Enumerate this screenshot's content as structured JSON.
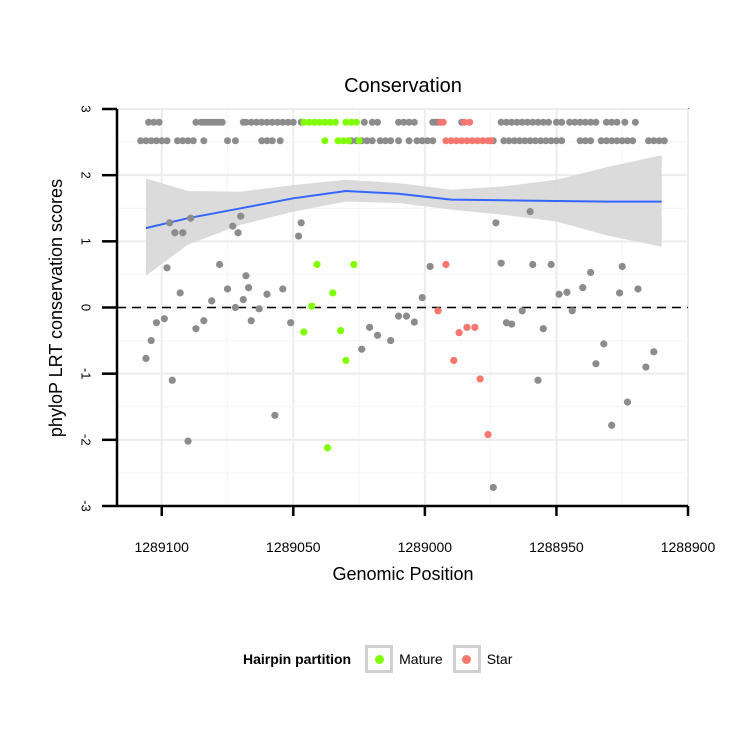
{
  "chart_data": {
    "type": "scatter",
    "title": "Conservation",
    "xlabel": "Genomic Position",
    "ylabel": "phyloP LRT conservation scores",
    "x_reversed": true,
    "xlim": [
      1289117,
      1288900
    ],
    "ylim": [
      -3,
      3
    ],
    "x_ticks": [
      1289100,
      1289050,
      1289000,
      1288950,
      1288900
    ],
    "x_tick_labels": [
      "1289100",
      "1289050",
      "1289000",
      "1288950",
      "1288900"
    ],
    "y_ticks": [
      -3,
      -2,
      -1,
      0,
      1,
      2,
      3
    ],
    "y_tick_labels": [
      "-3",
      "-2",
      "-1",
      "0",
      "1",
      "2",
      "3"
    ],
    "reference_line_y": 0,
    "legend": {
      "title": "Hairpin partition",
      "entries": [
        {
          "name": "Mature",
          "color": "#7FFF00"
        },
        {
          "name": "Star",
          "color": "#F8766D"
        }
      ]
    },
    "colors": {
      "other": "#8c8c8c",
      "Mature": "#7FFF00",
      "Star": "#F8766D",
      "trend": "#3366FF",
      "band": "#d9d9d9"
    },
    "trend": {
      "x": [
        1289106,
        1289090,
        1289070,
        1289050,
        1289030,
        1289010,
        1288990,
        1288970,
        1288950,
        1288930,
        1288910
      ],
      "y": [
        1.2,
        1.35,
        1.5,
        1.65,
        1.76,
        1.72,
        1.63,
        1.62,
        1.61,
        1.6,
        1.6
      ],
      "lower": [
        0.48,
        0.95,
        1.25,
        1.45,
        1.6,
        1.58,
        1.48,
        1.4,
        1.3,
        1.08,
        0.92
      ],
      "upper": [
        1.95,
        1.76,
        1.75,
        1.85,
        1.93,
        1.88,
        1.78,
        1.83,
        1.93,
        2.13,
        2.3
      ]
    },
    "points": [
      {
        "x": 1289106,
        "y": -0.77,
        "group": "other"
      },
      {
        "x": 1289104,
        "y": -0.5,
        "group": "other"
      },
      {
        "x": 1289102,
        "y": -0.23,
        "group": "other"
      },
      {
        "x": 1289099,
        "y": -0.17,
        "group": "other"
      },
      {
        "x": 1289098,
        "y": 0.6,
        "group": "other"
      },
      {
        "x": 1289097,
        "y": 1.28,
        "group": "other"
      },
      {
        "x": 1289096,
        "y": -1.1,
        "group": "other"
      },
      {
        "x": 1289095,
        "y": 1.13,
        "group": "other"
      },
      {
        "x": 1289093,
        "y": 0.22,
        "group": "other"
      },
      {
        "x": 1289092,
        "y": 1.13,
        "group": "other"
      },
      {
        "x": 1289090,
        "y": -2.02,
        "group": "other"
      },
      {
        "x": 1289089,
        "y": 1.35,
        "group": "other"
      },
      {
        "x": 1289087,
        "y": -0.32,
        "group": "other"
      },
      {
        "x": 1289084,
        "y": -0.2,
        "group": "other"
      },
      {
        "x": 1289081,
        "y": 0.1,
        "group": "other"
      },
      {
        "x": 1289078,
        "y": 0.65,
        "group": "other"
      },
      {
        "x": 1289075,
        "y": 0.28,
        "group": "other"
      },
      {
        "x": 1289073,
        "y": 1.23,
        "group": "other"
      },
      {
        "x": 1289072,
        "y": 0.0,
        "group": "other"
      },
      {
        "x": 1289071,
        "y": 1.13,
        "group": "other"
      },
      {
        "x": 1289070,
        "y": 1.38,
        "group": "other"
      },
      {
        "x": 1289069,
        "y": 0.12,
        "group": "other"
      },
      {
        "x": 1289068,
        "y": 0.48,
        "group": "other"
      },
      {
        "x": 1289067,
        "y": 0.3,
        "group": "other"
      },
      {
        "x": 1289066,
        "y": -0.2,
        "group": "other"
      },
      {
        "x": 1289063,
        "y": -0.02,
        "group": "other"
      },
      {
        "x": 1289060,
        "y": 0.2,
        "group": "other"
      },
      {
        "x": 1289057,
        "y": -1.63,
        "group": "other"
      },
      {
        "x": 1289054,
        "y": 0.28,
        "group": "other"
      },
      {
        "x": 1289051,
        "y": -0.23,
        "group": "other"
      },
      {
        "x": 1289048,
        "y": 1.08,
        "group": "other"
      },
      {
        "x": 1289047,
        "y": 1.28,
        "group": "other"
      },
      {
        "x": 1289046,
        "y": -0.37,
        "group": "Mature"
      },
      {
        "x": 1289043,
        "y": 0.02,
        "group": "Mature"
      },
      {
        "x": 1289041,
        "y": 0.65,
        "group": "Mature"
      },
      {
        "x": 1289037,
        "y": -2.12,
        "group": "Mature"
      },
      {
        "x": 1289035,
        "y": 0.22,
        "group": "Mature"
      },
      {
        "x": 1289032,
        "y": -0.35,
        "group": "Mature"
      },
      {
        "x": 1289030,
        "y": -0.8,
        "group": "Mature"
      },
      {
        "x": 1289027,
        "y": 0.65,
        "group": "Mature"
      },
      {
        "x": 1289024,
        "y": -0.63,
        "group": "other"
      },
      {
        "x": 1289021,
        "y": -0.3,
        "group": "other"
      },
      {
        "x": 1289018,
        "y": -0.42,
        "group": "other"
      },
      {
        "x": 1289013,
        "y": -0.5,
        "group": "other"
      },
      {
        "x": 1289010,
        "y": -0.13,
        "group": "other"
      },
      {
        "x": 1289007,
        "y": -0.13,
        "group": "other"
      },
      {
        "x": 1289004,
        "y": -0.22,
        "group": "other"
      },
      {
        "x": 1289001,
        "y": 0.15,
        "group": "other"
      },
      {
        "x": 1288998,
        "y": 0.62,
        "group": "other"
      },
      {
        "x": 1288995,
        "y": -0.05,
        "group": "Star"
      },
      {
        "x": 1288992,
        "y": 0.65,
        "group": "Star"
      },
      {
        "x": 1288989,
        "y": -0.8,
        "group": "Star"
      },
      {
        "x": 1288987,
        "y": -0.38,
        "group": "Star"
      },
      {
        "x": 1288984,
        "y": -0.3,
        "group": "Star"
      },
      {
        "x": 1288981,
        "y": -0.3,
        "group": "Star"
      },
      {
        "x": 1288979,
        "y": -1.08,
        "group": "Star"
      },
      {
        "x": 1288976,
        "y": -1.92,
        "group": "Star"
      },
      {
        "x": 1288974,
        "y": -2.72,
        "group": "other"
      },
      {
        "x": 1288973,
        "y": 1.28,
        "group": "other"
      },
      {
        "x": 1288971,
        "y": 0.67,
        "group": "other"
      },
      {
        "x": 1288969,
        "y": -0.23,
        "group": "other"
      },
      {
        "x": 1288967,
        "y": -0.25,
        "group": "other"
      },
      {
        "x": 1288963,
        "y": -0.05,
        "group": "other"
      },
      {
        "x": 1288960,
        "y": 1.45,
        "group": "other"
      },
      {
        "x": 1288959,
        "y": 0.65,
        "group": "other"
      },
      {
        "x": 1288957,
        "y": -1.1,
        "group": "other"
      },
      {
        "x": 1288955,
        "y": -0.32,
        "group": "other"
      },
      {
        "x": 1288952,
        "y": 0.65,
        "group": "other"
      },
      {
        "x": 1288949,
        "y": 0.2,
        "group": "other"
      },
      {
        "x": 1288946,
        "y": 0.23,
        "group": "other"
      },
      {
        "x": 1288944,
        "y": -0.05,
        "group": "other"
      },
      {
        "x": 1288940,
        "y": 0.3,
        "group": "other"
      },
      {
        "x": 1288937,
        "y": 0.53,
        "group": "other"
      },
      {
        "x": 1288935,
        "y": -0.85,
        "group": "other"
      },
      {
        "x": 1288932,
        "y": -0.55,
        "group": "other"
      },
      {
        "x": 1288929,
        "y": -1.78,
        "group": "other"
      },
      {
        "x": 1288926,
        "y": 0.22,
        "group": "other"
      },
      {
        "x": 1288925,
        "y": 0.62,
        "group": "other"
      },
      {
        "x": 1288923,
        "y": -1.43,
        "group": "other"
      },
      {
        "x": 1288919,
        "y": 0.28,
        "group": "other"
      },
      {
        "x": 1288916,
        "y": -0.9,
        "group": "other"
      },
      {
        "x": 1288913,
        "y": -0.67,
        "group": "other"
      }
    ],
    "rug": [
      {
        "y": 2.8,
        "x": [
          1289105,
          1289103,
          1289101,
          1289087,
          1289085,
          1289084,
          1289083,
          1289082,
          1289081,
          1289080,
          1289079,
          1289078,
          1289077,
          1289069,
          1289068,
          1289066,
          1289064,
          1289062,
          1289060,
          1289058,
          1289056,
          1289054,
          1289052,
          1289050,
          1289047,
          1289023,
          1289020,
          1289018,
          1289010,
          1289008,
          1289006,
          1289004,
          1288997,
          1288996,
          1288995,
          1288986,
          1288971,
          1288969,
          1288967,
          1288965,
          1288963,
          1288961,
          1288959,
          1288957,
          1288955,
          1288953,
          1288950,
          1288948,
          1288945,
          1288943,
          1288941,
          1288939,
          1288937,
          1288935,
          1288931,
          1288929,
          1288927,
          1288924,
          1288920
        ],
        "group": "other"
      },
      {
        "y": 2.52,
        "x": [
          1289108,
          1289106,
          1289104,
          1289102,
          1289100,
          1289098,
          1289094,
          1289092,
          1289090,
          1289088,
          1289084,
          1289075,
          1289072,
          1289062,
          1289060,
          1289058,
          1289055,
          1289028,
          1289026,
          1289024,
          1289022,
          1289020,
          1289017,
          1289015,
          1289013,
          1289010,
          1289006,
          1289003,
          1289001,
          1288999,
          1288997,
          1288974,
          1288970,
          1288968,
          1288966,
          1288964,
          1288962,
          1288960,
          1288958,
          1288956,
          1288954,
          1288952,
          1288950,
          1288948,
          1288941,
          1288939,
          1288937,
          1288933,
          1288931,
          1288929,
          1288927,
          1288925,
          1288923,
          1288921,
          1288915,
          1288913,
          1288911,
          1288909
        ],
        "group": "other"
      },
      {
        "y": 2.8,
        "x": [
          1289046,
          1289044,
          1289042,
          1289040,
          1289038,
          1289036,
          1289034,
          1289030,
          1289028,
          1289026
        ],
        "group": "Mature"
      },
      {
        "y": 2.52,
        "x": [
          1289038,
          1289033,
          1289031,
          1289029,
          1289025
        ],
        "group": "Mature"
      },
      {
        "y": 2.8,
        "x": [
          1288994,
          1288993,
          1288985,
          1288983
        ],
        "group": "Star"
      },
      {
        "y": 2.52,
        "x": [
          1288992,
          1288990,
          1288988,
          1288986,
          1288984,
          1288982,
          1288980,
          1288978,
          1288976,
          1288975
        ],
        "group": "Star"
      }
    ]
  }
}
